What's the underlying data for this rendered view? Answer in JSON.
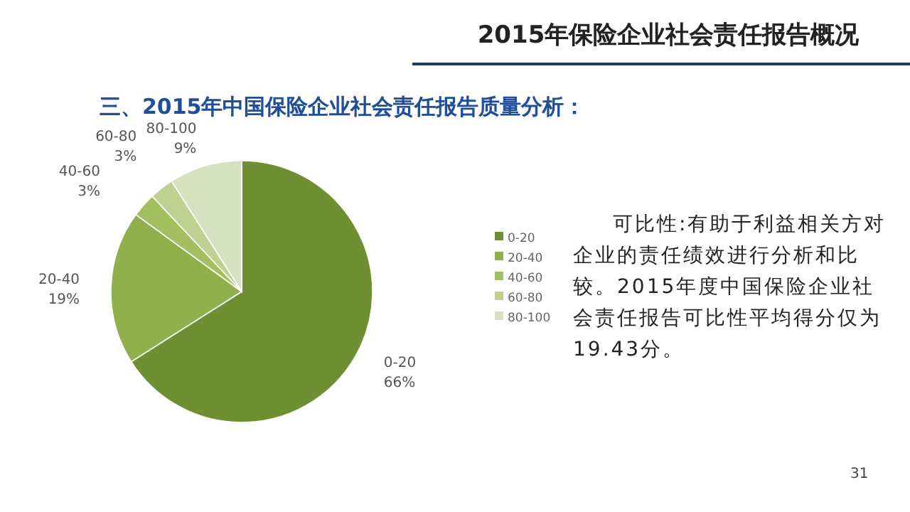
{
  "chart_data": {
    "type": "pie",
    "title": "2015年保险企业社会责任报告概况",
    "subtitle": "三、2015年中国保险企业社会责任报告质量分析：",
    "categories": [
      "0-20",
      "20-40",
      "40-60",
      "60-80",
      "80-100"
    ],
    "values": [
      66,
      19,
      3,
      3,
      9
    ],
    "colors": [
      "#6f8f33",
      "#8fb04c",
      "#a3c061",
      "#bdd190",
      "#d6e2bf"
    ],
    "value_labels": [
      "66%",
      "19%",
      "3%",
      "3%",
      "9%"
    ],
    "legend": "right",
    "annotations": [
      "可比性:有助于利益相关方对企业的责任绩效进行分析和比较。2015年度中国保险企业社会责任报告可比性平均得分仅为19.43分。",
      "31"
    ]
  }
}
